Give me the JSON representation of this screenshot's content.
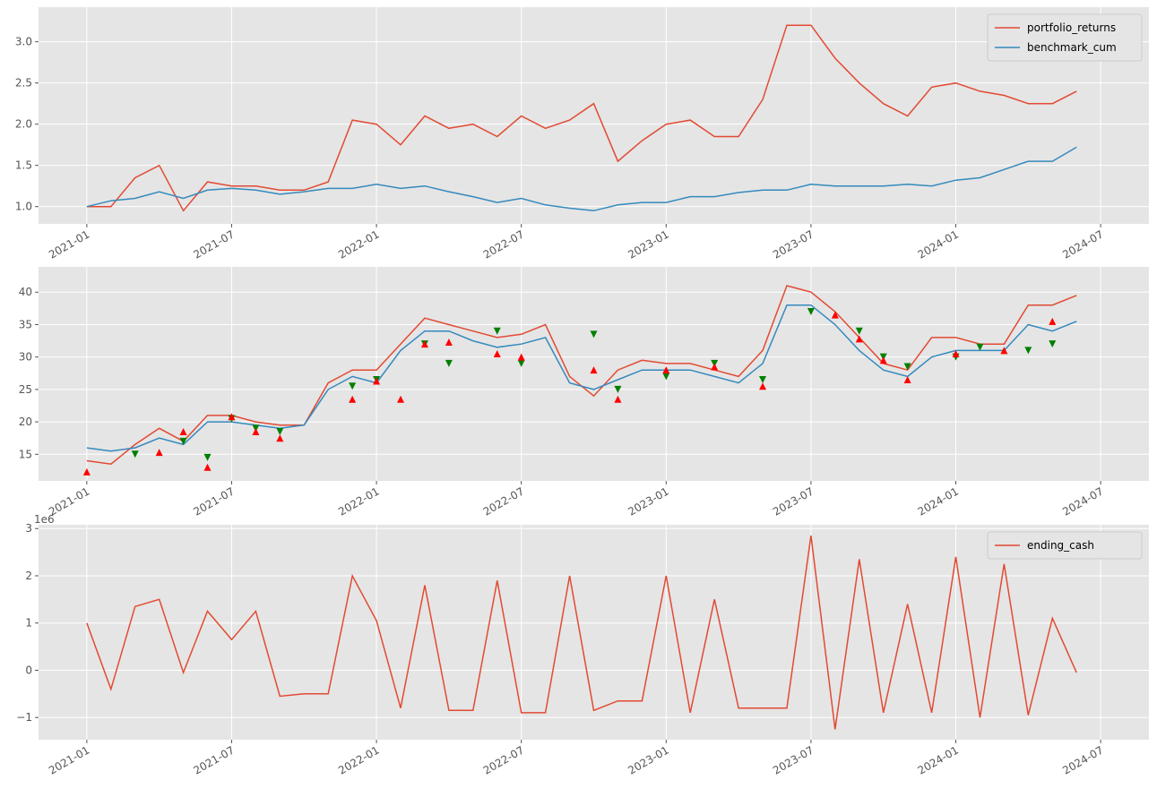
{
  "chart_data": [
    {
      "type": "line",
      "x": [
        "2021-01",
        "2021-02",
        "2021-03",
        "2021-04",
        "2021-05",
        "2021-06",
        "2021-07",
        "2021-08",
        "2021-09",
        "2021-10",
        "2021-11",
        "2021-12",
        "2022-01",
        "2022-02",
        "2022-03",
        "2022-04",
        "2022-05",
        "2022-06",
        "2022-07",
        "2022-08",
        "2022-09",
        "2022-10",
        "2022-11",
        "2022-12",
        "2023-01",
        "2023-02",
        "2023-03",
        "2023-04",
        "2023-05",
        "2023-06",
        "2023-07",
        "2023-08",
        "2023-09",
        "2023-10",
        "2023-11",
        "2023-12",
        "2024-01",
        "2024-02",
        "2024-03",
        "2024-04",
        "2024-05",
        "2024-06"
      ],
      "series": [
        {
          "name": "portfolio_returns",
          "color": "#E24A33",
          "values": [
            1.0,
            1.0,
            1.35,
            1.5,
            0.95,
            1.3,
            1.25,
            1.25,
            1.2,
            1.2,
            1.3,
            2.05,
            2.0,
            1.75,
            2.1,
            1.95,
            2.0,
            1.85,
            2.1,
            1.95,
            2.05,
            2.25,
            1.55,
            1.8,
            2.0,
            2.05,
            1.85,
            1.85,
            2.3,
            3.2,
            3.2,
            2.8,
            2.5,
            2.25,
            2.1,
            2.45,
            2.5,
            2.4,
            2.35,
            2.25,
            2.25,
            2.4
          ]
        },
        {
          "name": "benchmark_cum",
          "color": "#348ABD",
          "values": [
            1.0,
            1.07,
            1.1,
            1.18,
            1.1,
            1.2,
            1.22,
            1.2,
            1.15,
            1.18,
            1.22,
            1.22,
            1.27,
            1.22,
            1.25,
            1.18,
            1.12,
            1.05,
            1.1,
            1.02,
            0.98,
            0.95,
            1.02,
            1.05,
            1.05,
            1.12,
            1.12,
            1.17,
            1.2,
            1.2,
            1.27,
            1.25,
            1.25,
            1.25,
            1.27,
            1.25,
            1.32,
            1.35,
            1.45,
            1.55,
            1.55,
            1.72
          ]
        }
      ],
      "xlim": [
        "2020-11",
        "2024-09"
      ],
      "xticks": [
        "2021-01",
        "2021-07",
        "2022-01",
        "2022-07",
        "2023-01",
        "2023-07",
        "2024-01",
        "2024-07"
      ],
      "ylim": [
        0.79,
        3.42
      ],
      "yticks": [
        {
          "value": 1,
          "label": "1.0"
        },
        {
          "value": 1.5,
          "label": "1.5"
        },
        {
          "value": 2,
          "label": "2.0"
        },
        {
          "value": 2.5,
          "label": "2.5"
        },
        {
          "value": 3,
          "label": "3.0"
        }
      ],
      "grid": true,
      "legend": "upper right"
    },
    {
      "type": "line",
      "x": [
        "2021-01",
        "2021-02",
        "2021-03",
        "2021-04",
        "2021-05",
        "2021-06",
        "2021-07",
        "2021-08",
        "2021-09",
        "2021-10",
        "2021-11",
        "2021-12",
        "2022-01",
        "2022-02",
        "2022-03",
        "2022-04",
        "2022-05",
        "2022-06",
        "2022-07",
        "2022-08",
        "2022-09",
        "2022-10",
        "2022-11",
        "2022-12",
        "2023-01",
        "2023-02",
        "2023-03",
        "2023-04",
        "2023-05",
        "2023-06",
        "2023-07",
        "2023-08",
        "2023-09",
        "2023-10",
        "2023-11",
        "2023-12",
        "2024-01",
        "2024-02",
        "2024-03",
        "2024-04",
        "2024-05",
        "2024-06"
      ],
      "series": [
        {
          "color": "#E24A33",
          "values": [
            14,
            13.5,
            16.5,
            19,
            17,
            21,
            21,
            20,
            19.5,
            19.5,
            26,
            28,
            28,
            32,
            36,
            35,
            34,
            33,
            33.5,
            35,
            27,
            24,
            28,
            29.5,
            29,
            29,
            28,
            27,
            31,
            41,
            40,
            37,
            33,
            29,
            28,
            33,
            33,
            32,
            32,
            38,
            38,
            39.5
          ]
        },
        {
          "color": "#348ABD",
          "values": [
            16,
            15.5,
            16,
            17.5,
            16.5,
            20,
            20,
            19.5,
            19,
            19.5,
            25,
            27,
            26,
            31,
            34,
            34,
            32.5,
            31.5,
            32,
            33,
            26,
            25,
            26.5,
            28,
            28,
            28,
            27,
            26,
            29,
            38,
            38,
            35,
            31,
            28,
            27,
            30,
            31,
            31,
            31,
            35,
            34,
            35.5
          ]
        },
        {
          "color": "#008000",
          "marker": "triangle-down",
          "x": [
            "2021-03",
            "2021-05",
            "2021-06",
            "2021-07",
            "2021-08",
            "2021-09",
            "2021-12",
            "2022-01",
            "2022-03",
            "2022-04",
            "2022-06",
            "2022-07",
            "2022-10",
            "2022-11",
            "2023-01",
            "2023-03",
            "2023-05",
            "2023-07",
            "2023-09",
            "2023-10",
            "2023-11",
            "2024-01",
            "2024-02",
            "2024-04",
            "2024-05"
          ],
          "values": [
            15,
            17,
            14.5,
            20.5,
            19,
            18.5,
            25.5,
            26.5,
            32,
            29,
            34,
            29,
            33.5,
            25,
            27,
            29,
            26.5,
            37,
            34,
            30,
            28.5,
            30,
            31.5,
            31,
            32
          ]
        },
        {
          "color": "#FF0000",
          "marker": "triangle-up",
          "x": [
            "2021-01",
            "2021-04",
            "2021-05",
            "2021-06",
            "2021-07",
            "2021-08",
            "2021-09",
            "2021-12",
            "2022-01",
            "2022-02",
            "2022-03",
            "2022-04",
            "2022-06",
            "2022-07",
            "2022-10",
            "2022-11",
            "2023-01",
            "2023-03",
            "2023-05",
            "2023-08",
            "2023-09",
            "2023-10",
            "2023-11",
            "2024-01",
            "2024-03",
            "2024-05"
          ],
          "values": [
            12.3,
            15.3,
            18.5,
            13,
            20.8,
            18.5,
            17.5,
            23.5,
            26.3,
            23.5,
            32,
            32.3,
            30.5,
            30,
            28,
            23.5,
            28,
            28.5,
            25.5,
            36.5,
            32.8,
            29.5,
            26.5,
            30.5,
            31,
            35.5
          ]
        }
      ],
      "xlim": [
        "2020-11",
        "2024-09"
      ],
      "xticks": [
        "2021-01",
        "2021-07",
        "2022-01",
        "2022-07",
        "2023-01",
        "2023-07",
        "2024-01",
        "2024-07"
      ],
      "ylim": [
        10.9,
        43.9
      ],
      "yticks": [
        15,
        20,
        25,
        30,
        35,
        40
      ],
      "grid": true
    },
    {
      "type": "line",
      "x": [
        "2021-01",
        "2021-02",
        "2021-03",
        "2021-04",
        "2021-05",
        "2021-06",
        "2021-07",
        "2021-08",
        "2021-09",
        "2021-10",
        "2021-11",
        "2021-12",
        "2022-01",
        "2022-02",
        "2022-03",
        "2022-04",
        "2022-05",
        "2022-06",
        "2022-07",
        "2022-08",
        "2022-09",
        "2022-10",
        "2022-11",
        "2022-12",
        "2023-01",
        "2023-02",
        "2023-03",
        "2023-04",
        "2023-05",
        "2023-06",
        "2023-07",
        "2023-08",
        "2023-09",
        "2023-10",
        "2023-11",
        "2023-12",
        "2024-01",
        "2024-02",
        "2024-03",
        "2024-04",
        "2024-05",
        "2024-06"
      ],
      "series": [
        {
          "name": "ending_cash",
          "color": "#E24A33",
          "values": [
            1.0,
            -0.4,
            1.35,
            1.5,
            -0.05,
            1.25,
            0.65,
            1.25,
            -0.55,
            -0.5,
            -0.5,
            2.0,
            1.05,
            -0.8,
            1.8,
            -0.85,
            -0.85,
            1.9,
            -0.9,
            -0.9,
            2.0,
            -0.85,
            -0.65,
            -0.65,
            2.0,
            -0.9,
            1.5,
            -0.8,
            -0.8,
            -0.8,
            2.85,
            -1.25,
            2.35,
            -0.9,
            1.4,
            -0.9,
            2.4,
            -1.0,
            2.25,
            -0.95,
            1.1,
            -0.05
          ]
        }
      ],
      "offset_label": "1e6",
      "xlim": [
        "2020-11",
        "2024-09"
      ],
      "xticks": [
        "2021-01",
        "2021-07",
        "2022-01",
        "2022-07",
        "2023-01",
        "2023-07",
        "2024-01",
        "2024-07"
      ],
      "ylim": [
        -1.47,
        3.08
      ],
      "yticks": [
        {
          "value": -1,
          "label": "−1"
        },
        0,
        1,
        2,
        3
      ],
      "grid": true,
      "legend": "upper right"
    }
  ]
}
